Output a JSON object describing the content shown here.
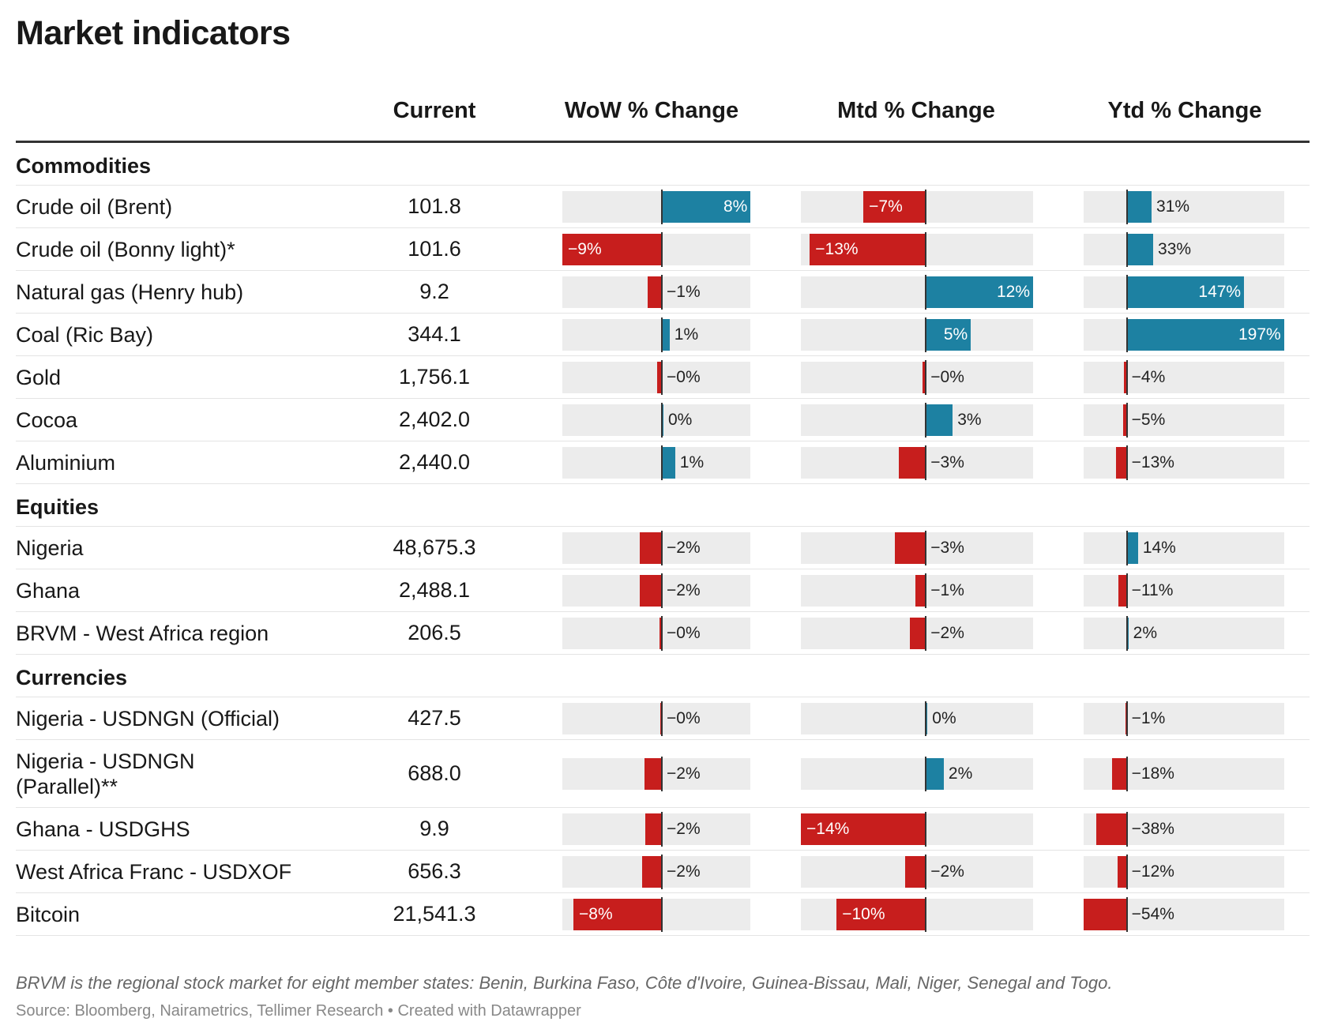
{
  "title": "Market indicators",
  "columns": {
    "current": "Current",
    "wow": "WoW % Change",
    "mtd": "Mtd % Change",
    "ytd": "Ytd % Change"
  },
  "chart_data": {
    "type": "table",
    "title": "Market indicators",
    "bar_columns": [
      {
        "key": "wow",
        "label": "WoW % Change",
        "range": [
          -9,
          8
        ]
      },
      {
        "key": "mtd",
        "label": "Mtd % Change",
        "range": [
          -14,
          12
        ]
      },
      {
        "key": "ytd",
        "label": "Ytd % Change",
        "range": [
          -54,
          197
        ]
      }
    ],
    "groups": [
      {
        "name": "Commodities",
        "rows": [
          {
            "name": "Crude oil (Brent)",
            "current": "101.8",
            "wow": 8,
            "mtd": -7,
            "ytd": 31,
            "wow_label": "8%",
            "mtd_label": "−7%",
            "ytd_label": "31%"
          },
          {
            "name": "Crude oil (Bonny light)*",
            "current": "101.6",
            "wow": -9,
            "mtd": -13,
            "ytd": 33,
            "wow_label": "−9%",
            "mtd_label": "−13%",
            "ytd_label": "33%"
          },
          {
            "name": "Natural gas (Henry hub)",
            "current": "9.2",
            "wow": -1.3,
            "mtd": 12,
            "ytd": 147,
            "wow_label": "−1%",
            "mtd_label": "12%",
            "ytd_label": "147%"
          },
          {
            "name": "Coal (Ric Bay)",
            "current": "344.1",
            "wow": 0.7,
            "mtd": 5,
            "ytd": 197,
            "wow_label": "1%",
            "mtd_label": "5%",
            "ytd_label": "197%"
          },
          {
            "name": "Gold",
            "current": "1,756.1",
            "wow": -0.4,
            "mtd": -0.4,
            "ytd": -4,
            "wow_label": "−0%",
            "mtd_label": "−0%",
            "ytd_label": "−4%"
          },
          {
            "name": "Cocoa",
            "current": "2,402.0",
            "wow": 0.1,
            "mtd": 3,
            "ytd": -5,
            "wow_label": "0%",
            "mtd_label": "3%",
            "ytd_label": "−5%"
          },
          {
            "name": "Aluminium",
            "current": "2,440.0",
            "wow": 1.2,
            "mtd": -3,
            "ytd": -13,
            "wow_label": "1%",
            "mtd_label": "−3%",
            "ytd_label": "−13%"
          }
        ]
      },
      {
        "name": "Equities",
        "rows": [
          {
            "name": "Nigeria",
            "current": "48,675.3",
            "wow": -2,
            "mtd": -3.5,
            "ytd": 14,
            "wow_label": "−2%",
            "mtd_label": "−3%",
            "ytd_label": "14%"
          },
          {
            "name": "Ghana",
            "current": "2,488.1",
            "wow": -2,
            "mtd": -1.2,
            "ytd": -11,
            "wow_label": "−2%",
            "mtd_label": "−1%",
            "ytd_label": "−11%"
          },
          {
            "name": "BRVM - West Africa region",
            "current": "206.5",
            "wow": -0.2,
            "mtd": -1.8,
            "ytd": 2,
            "wow_label": "−0%",
            "mtd_label": "−2%",
            "ytd_label": "2%"
          }
        ]
      },
      {
        "name": "Currencies",
        "rows": [
          {
            "name": "Nigeria - USDNGN (Official)",
            "current": "427.5",
            "wow": -0.1,
            "mtd": 0.1,
            "ytd": -1,
            "wow_label": "−0%",
            "mtd_label": "0%",
            "ytd_label": "−1%"
          },
          {
            "name": "Nigeria - USDNGN (Parallel)**",
            "current": "688.0",
            "wow": -1.6,
            "mtd": 2,
            "ytd": -18,
            "wow_label": "−2%",
            "mtd_label": "2%",
            "ytd_label": "−18%"
          },
          {
            "name": "Ghana - USDGHS",
            "current": "9.9",
            "wow": -1.5,
            "mtd": -14,
            "ytd": -38,
            "wow_label": "−2%",
            "mtd_label": "−14%",
            "ytd_label": "−38%"
          },
          {
            "name": "West Africa Franc - USDXOF",
            "current": "656.3",
            "wow": -1.8,
            "mtd": -2.3,
            "ytd": -12,
            "wow_label": "−2%",
            "mtd_label": "−2%",
            "ytd_label": "−12%"
          },
          {
            "name": "Bitcoin",
            "current": "21,541.3",
            "wow": -8,
            "mtd": -10,
            "ytd": -54,
            "wow_label": "−8%",
            "mtd_label": "−10%",
            "ytd_label": "−54%"
          }
        ]
      }
    ]
  },
  "footnote": "BRVM is the regional stock market for eight member states: Benin, Burkina Faso, Côte d'Ivoire, Guinea-Bissau, Mali, Niger, Senegal and Togo.",
  "source": "Source: Bloomberg, Nairametrics, Tellimer Research • Created with Datawrapper",
  "colors": {
    "positive": "#1d81a2",
    "negative": "#c71e1d",
    "track": "#ececec"
  }
}
